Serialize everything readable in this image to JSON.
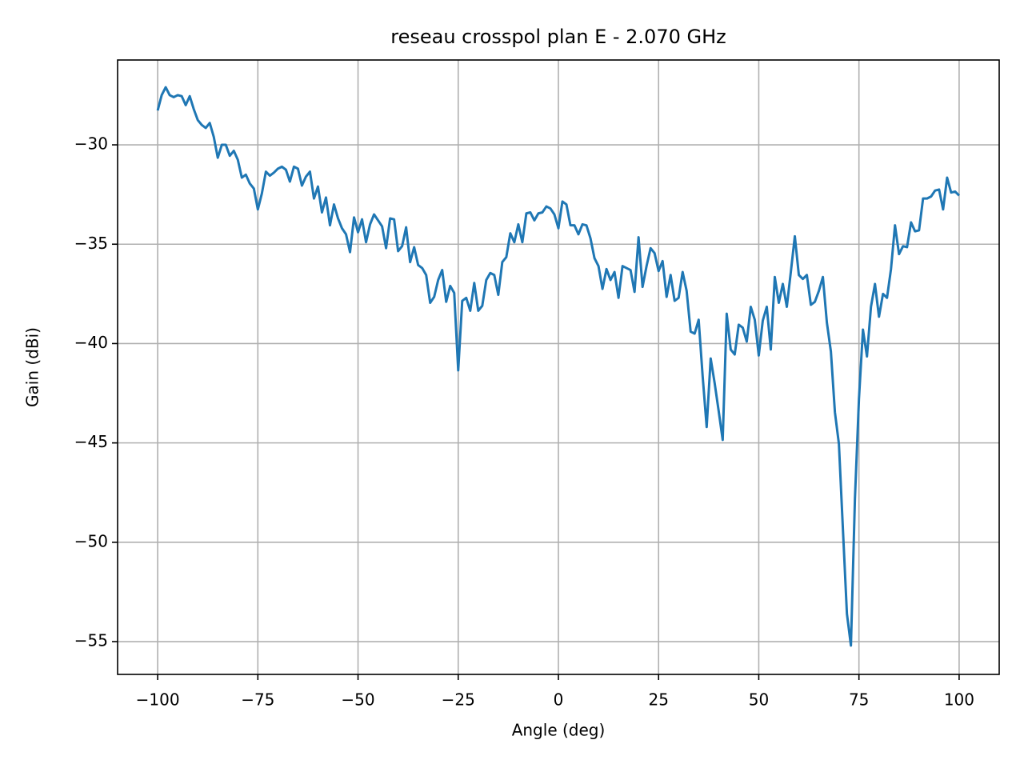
{
  "chart_data": {
    "type": "line",
    "title": "reseau crosspol plan E - 2.070 GHz",
    "xlabel": "Angle (deg)",
    "ylabel": "Gain (dBi)",
    "x": [
      -100,
      -99,
      -98,
      -97,
      -96,
      -95,
      -94,
      -93,
      -92,
      -91,
      -90,
      -89,
      -88,
      -87,
      -86,
      -85,
      -84,
      -83,
      -82,
      -81,
      -80,
      -79,
      -78,
      -77,
      -76,
      -75,
      -74,
      -73,
      -72,
      -71,
      -70,
      -69,
      -68,
      -67,
      -66,
      -65,
      -64,
      -63,
      -62,
      -61,
      -60,
      -59,
      -58,
      -57,
      -56,
      -55,
      -54,
      -53,
      -52,
      -51,
      -50,
      -49,
      -48,
      -47,
      -46,
      -45,
      -44,
      -43,
      -42,
      -41,
      -40,
      -39,
      -38,
      -37,
      -36,
      -35,
      -34,
      -33,
      -32,
      -31,
      -30,
      -29,
      -28,
      -27,
      -26,
      -25,
      -24,
      -23,
      -22,
      -21,
      -20,
      -19,
      -18,
      -17,
      -16,
      -15,
      -14,
      -13,
      -12,
      -11,
      -10,
      -9,
      -8,
      -7,
      -6,
      -5,
      -4,
      -3,
      -2,
      -1,
      0,
      1,
      2,
      3,
      4,
      5,
      6,
      7,
      8,
      9,
      10,
      11,
      12,
      13,
      14,
      15,
      16,
      17,
      18,
      19,
      20,
      21,
      22,
      23,
      24,
      25,
      26,
      27,
      28,
      29,
      30,
      31,
      32,
      33,
      34,
      35,
      36,
      37,
      38,
      39,
      40,
      41,
      42,
      43,
      44,
      45,
      46,
      47,
      48,
      49,
      50,
      51,
      52,
      53,
      54,
      55,
      56,
      57,
      58,
      59,
      60,
      61,
      62,
      63,
      64,
      65,
      66,
      67,
      68,
      69,
      70,
      71,
      72,
      73,
      74,
      75,
      76,
      77,
      78,
      79,
      80,
      81,
      82,
      83,
      84,
      85,
      86,
      87,
      88,
      89,
      90,
      91,
      92,
      93,
      94,
      95,
      96,
      97,
      98,
      99,
      100
    ],
    "series": [
      {
        "name": "crosspol",
        "color": "#1f77b4",
        "values": [
          -28.27,
          -27.5,
          -27.1,
          -27.5,
          -27.6,
          -27.5,
          -27.55,
          -28.0,
          -27.55,
          -28.2,
          -28.75,
          -29.0,
          -29.15,
          -28.9,
          -29.6,
          -30.65,
          -30.0,
          -30.0,
          -30.55,
          -30.3,
          -30.75,
          -31.65,
          -31.5,
          -31.95,
          -32.2,
          -33.25,
          -32.45,
          -31.35,
          -31.55,
          -31.4,
          -31.2,
          -31.1,
          -31.25,
          -31.85,
          -31.1,
          -31.2,
          -32.05,
          -31.6,
          -31.35,
          -32.7,
          -32.1,
          -33.4,
          -32.65,
          -34.05,
          -33.0,
          -33.7,
          -34.2,
          -34.5,
          -35.4,
          -33.65,
          -34.4,
          -33.75,
          -34.9,
          -34.0,
          -33.5,
          -33.8,
          -34.1,
          -35.2,
          -33.7,
          -33.75,
          -35.35,
          -35.1,
          -34.15,
          -35.9,
          -35.15,
          -36.05,
          -36.2,
          -36.55,
          -37.95,
          -37.65,
          -36.8,
          -36.3,
          -37.9,
          -37.1,
          -37.45,
          -41.35,
          -37.85,
          -37.7,
          -38.35,
          -36.95,
          -38.35,
          -38.1,
          -36.8,
          -36.45,
          -36.55,
          -37.55,
          -35.9,
          -35.65,
          -34.45,
          -34.9,
          -34.0,
          -34.9,
          -33.45,
          -33.4,
          -33.8,
          -33.45,
          -33.4,
          -33.1,
          -33.2,
          -33.5,
          -34.2,
          -32.85,
          -33.0,
          -34.05,
          -34.05,
          -34.5,
          -34.0,
          -34.05,
          -34.7,
          -35.7,
          -36.1,
          -37.25,
          -36.25,
          -36.8,
          -36.4,
          -37.7,
          -36.1,
          -36.2,
          -36.3,
          -37.4,
          -34.65,
          -37.15,
          -36.1,
          -35.2,
          -35.45,
          -36.35,
          -35.85,
          -37.65,
          -36.55,
          -37.85,
          -37.7,
          -36.4,
          -37.35,
          -39.4,
          -39.5,
          -38.8,
          -41.65,
          -44.2,
          -40.75,
          -42.0,
          -43.4,
          -44.85,
          -38.5,
          -40.3,
          -40.55,
          -39.05,
          -39.2,
          -39.9,
          -38.15,
          -38.8,
          -40.6,
          -38.85,
          -38.15,
          -40.3,
          -36.65,
          -37.95,
          -37.0,
          -38.15,
          -36.4,
          -34.6,
          -36.55,
          -36.75,
          -36.55,
          -38.05,
          -37.9,
          -37.35,
          -36.65,
          -38.95,
          -40.4,
          -43.45,
          -45.05,
          -49.35,
          -53.6,
          -55.2,
          -47.8,
          -42.8,
          -39.3,
          -40.65,
          -38.15,
          -37.0,
          -38.65,
          -37.5,
          -37.7,
          -36.25,
          -34.05,
          -35.5,
          -35.1,
          -35.15,
          -33.9,
          -34.35,
          -34.3,
          -32.7,
          -32.7,
          -32.6,
          -32.3,
          -32.25,
          -33.25,
          -31.65,
          -32.4,
          -32.35,
          -32.55
        ]
      }
    ],
    "xlim": [
      -110,
      110
    ],
    "ylim": [
      -56.65,
      -25.73
    ],
    "xticks": [
      {
        "value": -100,
        "label": "−100"
      },
      {
        "value": -75,
        "label": "−75"
      },
      {
        "value": -50,
        "label": "−50"
      },
      {
        "value": -25,
        "label": "−25"
      },
      0,
      25,
      50,
      75,
      100
    ],
    "yticks": [
      {
        "value": -55,
        "label": "−55"
      },
      {
        "value": -50,
        "label": "−50"
      },
      {
        "value": -45,
        "label": "−45"
      },
      {
        "value": -40,
        "label": "−40"
      },
      {
        "value": -35,
        "label": "−35"
      },
      {
        "value": -30,
        "label": "−30"
      }
    ],
    "grid": true
  }
}
